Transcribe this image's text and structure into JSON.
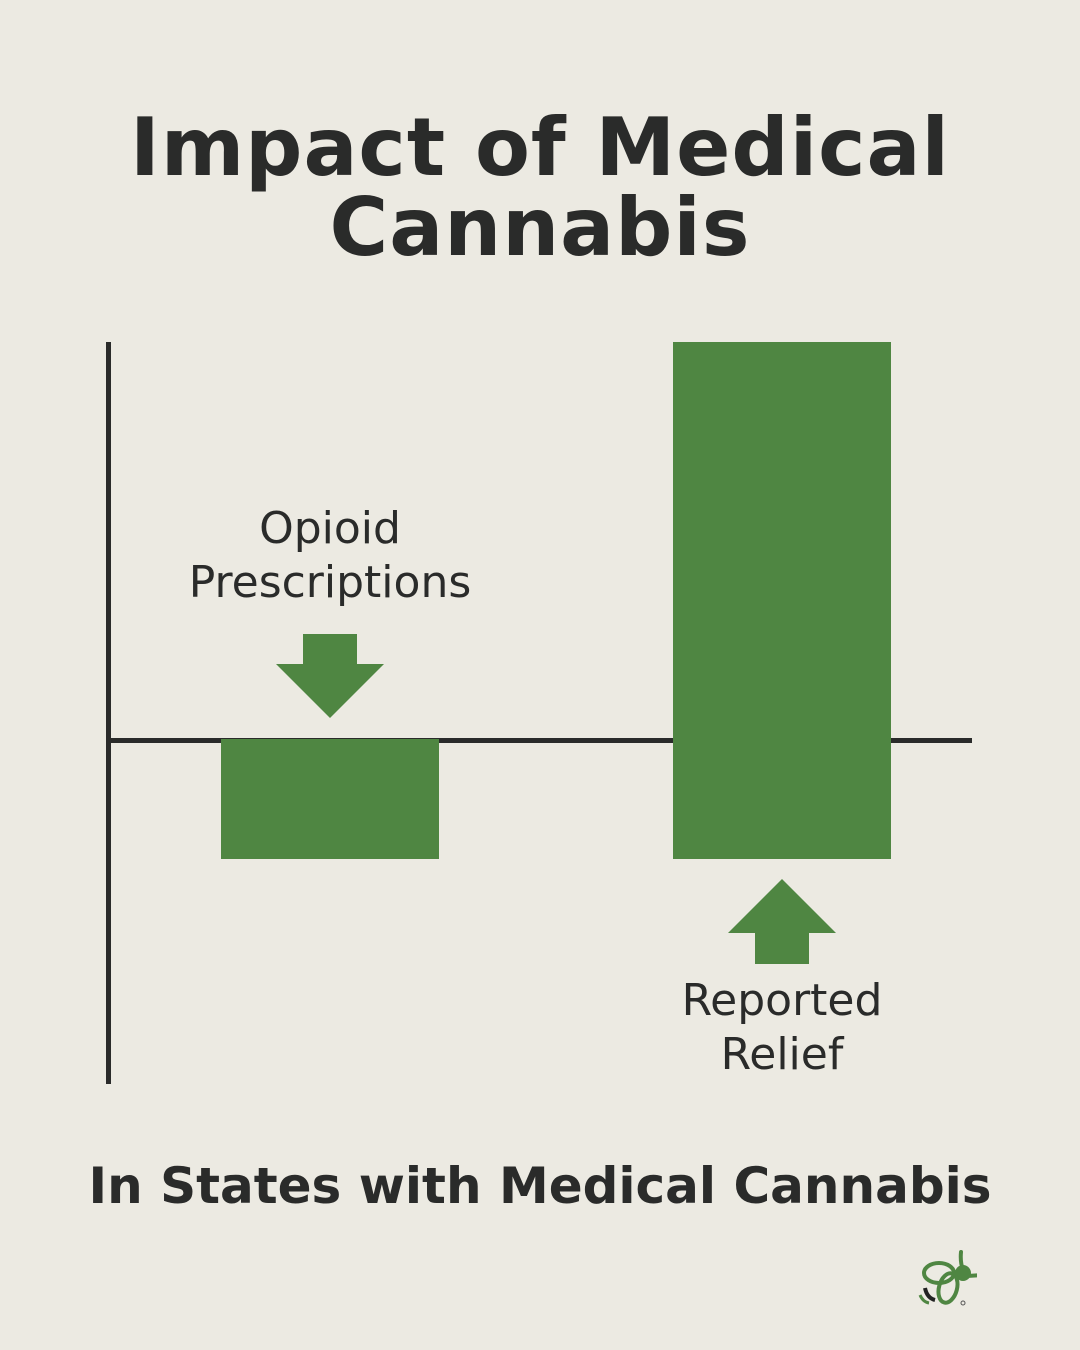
{
  "title_line1": "Impact of Medical",
  "title_line2": "Cannabis",
  "subtitle": "In States with Medical Cannabis",
  "colors": {
    "background": "#ECEAE2",
    "bar": "#4F8642",
    "text": "#2A2B2A"
  },
  "chart_data": {
    "type": "bar",
    "title": "Impact of Medical Cannabis",
    "xlabel": "In States with Medical Cannabis",
    "categories": [
      "Opioid Prescriptions",
      "Reported Relief"
    ],
    "series": [
      {
        "directions": [
          "decrease",
          "increase"
        ]
      }
    ],
    "labels": [
      {
        "line1": "Opioid",
        "line2": "Prescriptions",
        "arrow": "down-arrow-icon"
      },
      {
        "line1": "Reported",
        "line2": "Relief",
        "arrow": "up-arrow-icon"
      }
    ],
    "grid": false,
    "legend": "none"
  },
  "logo": "bee-logo"
}
